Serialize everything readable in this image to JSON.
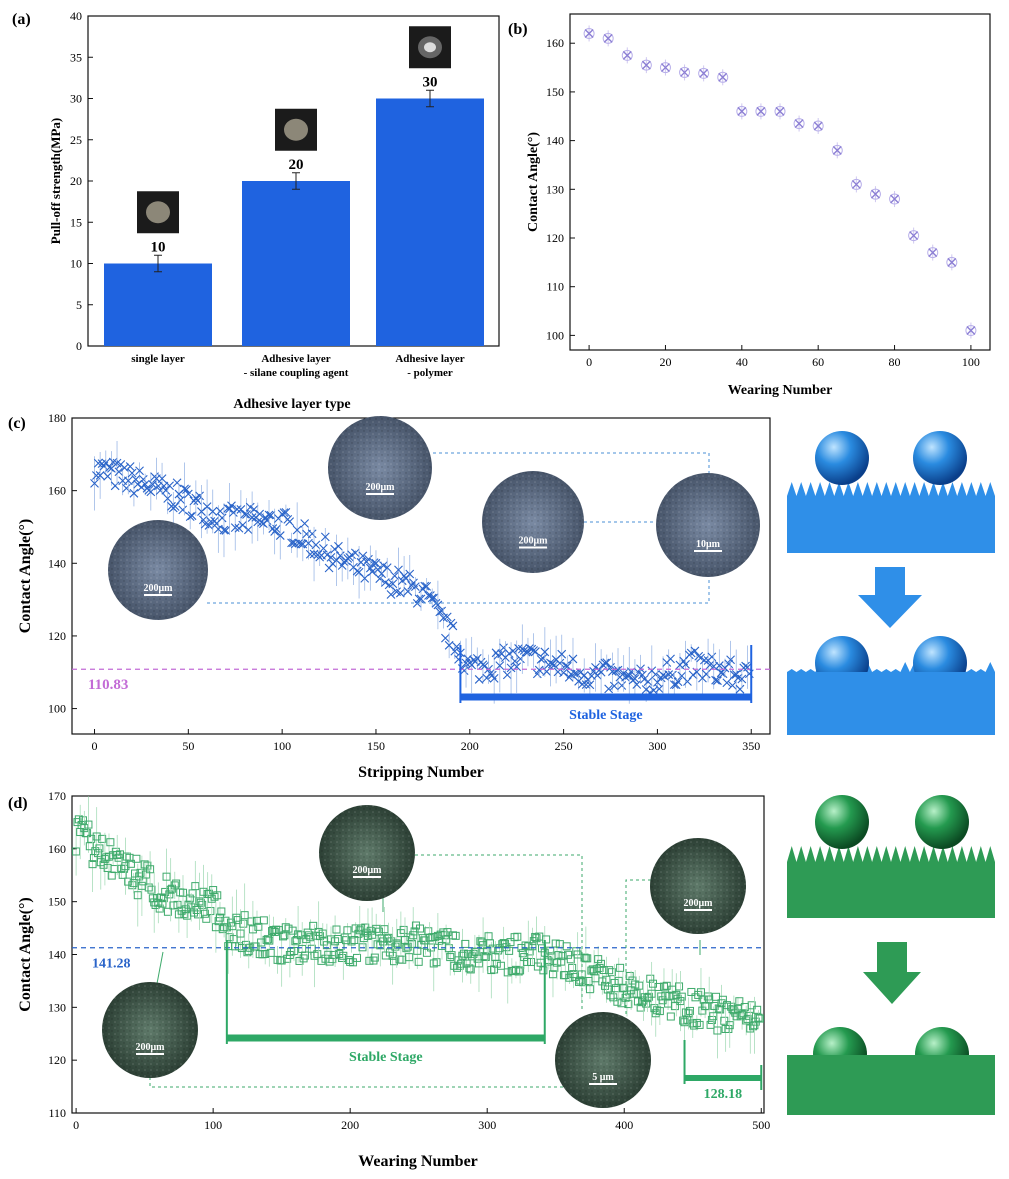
{
  "chart_data": [
    {
      "id": "a",
      "type": "bar",
      "panel_label": "(a)",
      "categories": [
        "single layer",
        "Adhesive layer\n- silane coupling agent",
        "Adhesive layer\n- polymer"
      ],
      "values": [
        10,
        20,
        30
      ],
      "errors": [
        1,
        1,
        1
      ],
      "value_labels": [
        "10",
        "20",
        "30"
      ],
      "ylabel": "Pull-off strength(MPa)",
      "xlabel": "Adhesive layer type",
      "ylim": [
        0,
        40
      ],
      "yticks": [
        0,
        5,
        10,
        15,
        20,
        25,
        30,
        35,
        40
      ],
      "colors": {
        "bar": "#1f63e0",
        "error": "#222222"
      }
    },
    {
      "id": "b",
      "type": "scatter",
      "panel_label": "(b)",
      "x": [
        0,
        5,
        10,
        15,
        20,
        25,
        30,
        35,
        40,
        45,
        50,
        55,
        60,
        65,
        70,
        75,
        80,
        85,
        90,
        95,
        100
      ],
      "y": [
        162,
        161,
        157.5,
        155.5,
        155,
        154,
        153.8,
        153,
        146,
        146,
        146,
        143.5,
        143,
        138,
        131,
        129,
        128,
        120.5,
        117,
        115,
        101
      ],
      "xlabel": "Wearing Number",
      "ylabel": "Contact Angle(°)",
      "xlim": [
        -5,
        105
      ],
      "ylim": [
        97,
        166
      ],
      "xticks": [
        0,
        20,
        40,
        60,
        80,
        100
      ],
      "yticks": [
        100,
        110,
        120,
        130,
        140,
        150,
        160
      ],
      "colors": {
        "marker": "#8c7fd4"
      }
    },
    {
      "id": "c",
      "type": "scatter",
      "panel_label": "(c)",
      "trend": [
        [
          0,
          166
        ],
        [
          20,
          163
        ],
        [
          50,
          157
        ],
        [
          70,
          152
        ],
        [
          100,
          151
        ],
        [
          130,
          141
        ],
        [
          150,
          137
        ],
        [
          175,
          132
        ],
        [
          190,
          120
        ],
        [
          200,
          111
        ],
        [
          230,
          114
        ],
        [
          260,
          110
        ],
        [
          290,
          107
        ],
        [
          320,
          112
        ],
        [
          350,
          108
        ]
      ],
      "n_points": 350,
      "xlabel": "Stripping Number",
      "ylabel": "Contact Angle(°)",
      "xlim": [
        -12,
        360
      ],
      "ylim": [
        93,
        180
      ],
      "xticks": [
        0,
        50,
        100,
        150,
        200,
        250,
        300,
        350
      ],
      "yticks": [
        100,
        120,
        140,
        160,
        180
      ],
      "reference_line": {
        "value": 110.83,
        "label": "110.83"
      },
      "stable_stage": {
        "start": 195,
        "end": 350,
        "label": "Stable Stage"
      },
      "scale_bars": [
        "200μm",
        "200μm",
        "200μm",
        "10μm"
      ],
      "colors": {
        "marker": "#2a64c9",
        "ref": "#c36bd6",
        "stage": "#1f63e0"
      }
    },
    {
      "id": "d",
      "type": "scatter",
      "panel_label": "(d)",
      "trend": [
        [
          0,
          163
        ],
        [
          30,
          157
        ],
        [
          60,
          152
        ],
        [
          100,
          149
        ],
        [
          110,
          145
        ],
        [
          150,
          142
        ],
        [
          200,
          142
        ],
        [
          250,
          142
        ],
        [
          300,
          140
        ],
        [
          340,
          140
        ],
        [
          380,
          136
        ],
        [
          420,
          132
        ],
        [
          450,
          130
        ],
        [
          480,
          128
        ],
        [
          500,
          127
        ]
      ],
      "n_points": 500,
      "xlabel": "Wearing Number",
      "ylabel": "Contact Angle(°)",
      "xlim": [
        -3,
        502
      ],
      "ylim": [
        110,
        170
      ],
      "xticks": [
        0,
        100,
        200,
        300,
        400,
        500
      ],
      "yticks": [
        110,
        120,
        130,
        140,
        150,
        160,
        170
      ],
      "reference_line": {
        "value": 141.28,
        "label": "141.28"
      },
      "stable_stage": {
        "start": 110,
        "end": 342,
        "label": "Stable Stage"
      },
      "end_stage": {
        "start": 444,
        "end": 500,
        "label": "128.18"
      },
      "scale_bars": [
        "200μm",
        "200μm",
        "200μm",
        "5 μm"
      ],
      "colors": {
        "marker": "#3eaa6b",
        "ref": "#2a64c9",
        "stage": "#2ea866"
      }
    }
  ],
  "schematics": {
    "blue": {
      "color": "#2f8fe8"
    },
    "green": {
      "color": "#2e9b55"
    }
  }
}
